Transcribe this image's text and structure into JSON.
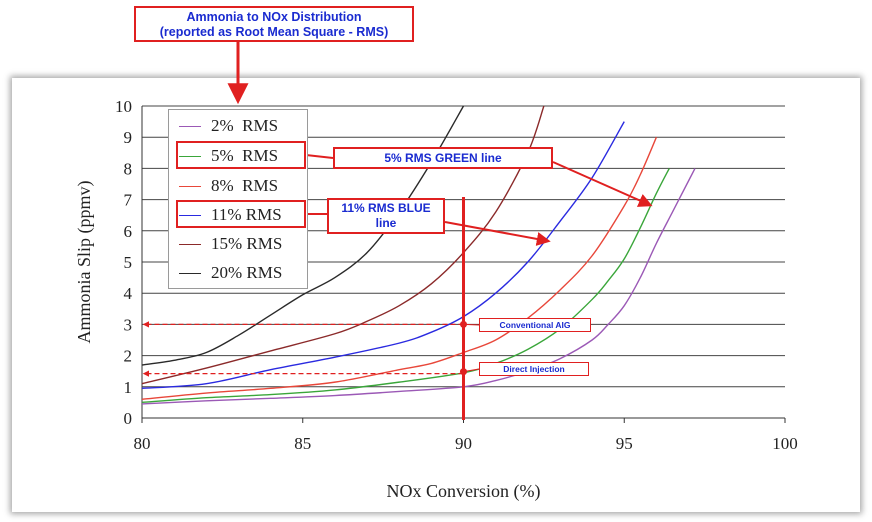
{
  "colors": {
    "2": "#9b59b6",
    "5": "#3aa63a",
    "8": "#e8473a",
    "11": "#2a2ae0",
    "15": "#8b2a2a",
    "20": "#2a2a2a",
    "annotation": "#e02020",
    "callout_text": "#1a2bd0",
    "grid": "#444444"
  },
  "annotations": {
    "title_line1": "Ammonia to NOx Distribution",
    "title_line2": "(reported as Root Mean Square - RMS)",
    "green_callout": "5% RMS GREEN line",
    "blue_callout_line1": "11% RMS BLUE",
    "blue_callout_line2": "line",
    "conventional_aig": "Conventional AIG",
    "direct_injection": "Direct Injection",
    "vertical_line_x": 90,
    "conventional_aig_y": 3.0,
    "direct_injection_y": 1.55
  },
  "chart_data": {
    "type": "line",
    "title": "",
    "xlabel": "NOx Conversion (%)",
    "ylabel": "Ammonia Slip (ppmv)",
    "xlim": [
      80,
      100
    ],
    "ylim": [
      0,
      10
    ],
    "xticks": [
      80,
      85,
      90,
      95,
      100
    ],
    "yticks": [
      0,
      1,
      2,
      3,
      4,
      5,
      6,
      7,
      8,
      9,
      10
    ],
    "grid": "horizontal",
    "legend_position": "top-left",
    "series": [
      {
        "key": "2",
        "name": "2%  RMS",
        "x": [
          80,
          82,
          84,
          86,
          88,
          90,
          91,
          92,
          93,
          94,
          94.5,
          95,
          95.5,
          96,
          96.5,
          97,
          97.2
        ],
        "y": [
          0.45,
          0.55,
          0.63,
          0.72,
          0.85,
          1.0,
          1.2,
          1.5,
          1.9,
          2.5,
          3.0,
          3.6,
          4.5,
          5.6,
          6.6,
          7.6,
          8.0
        ]
      },
      {
        "key": "5",
        "name": "5%  RMS",
        "x": [
          80,
          82,
          84,
          86,
          88,
          90,
          91,
          92,
          93,
          94,
          94.5,
          95,
          95.5,
          96,
          96.4
        ],
        "y": [
          0.5,
          0.65,
          0.75,
          0.9,
          1.15,
          1.45,
          1.75,
          2.2,
          2.85,
          3.8,
          4.4,
          5.1,
          6.1,
          7.2,
          8.0
        ]
      },
      {
        "key": "8",
        "name": "8%  RMS",
        "x": [
          80,
          82,
          84,
          86,
          88,
          89,
          90,
          91,
          92,
          93,
          94,
          95,
          95.5,
          96
        ],
        "y": [
          0.6,
          0.8,
          0.95,
          1.15,
          1.55,
          1.75,
          2.1,
          2.5,
          3.2,
          4.1,
          5.2,
          6.8,
          7.8,
          9.0
        ]
      },
      {
        "key": "11",
        "name": "11% RMS",
        "x": [
          80,
          82,
          84,
          86,
          88,
          89,
          90,
          91,
          92,
          93,
          94,
          95
        ],
        "y": [
          0.95,
          1.1,
          1.55,
          1.95,
          2.4,
          2.75,
          3.25,
          4.0,
          5.0,
          6.3,
          7.7,
          9.5
        ]
      },
      {
        "key": "15",
        "name": "15% RMS",
        "x": [
          80,
          82,
          84,
          86,
          87,
          88,
          89,
          90,
          91,
          92,
          92.5
        ],
        "y": [
          1.1,
          1.6,
          2.15,
          2.7,
          3.1,
          3.6,
          4.3,
          5.3,
          6.6,
          8.5,
          10.0
        ]
      },
      {
        "key": "20",
        "name": "20% RMS",
        "x": [
          80,
          81,
          82,
          83,
          84,
          85,
          86,
          87,
          88,
          89,
          90
        ],
        "y": [
          1.7,
          1.85,
          2.1,
          2.65,
          3.3,
          3.95,
          4.5,
          5.3,
          6.6,
          8.2,
          10.0
        ]
      }
    ]
  }
}
